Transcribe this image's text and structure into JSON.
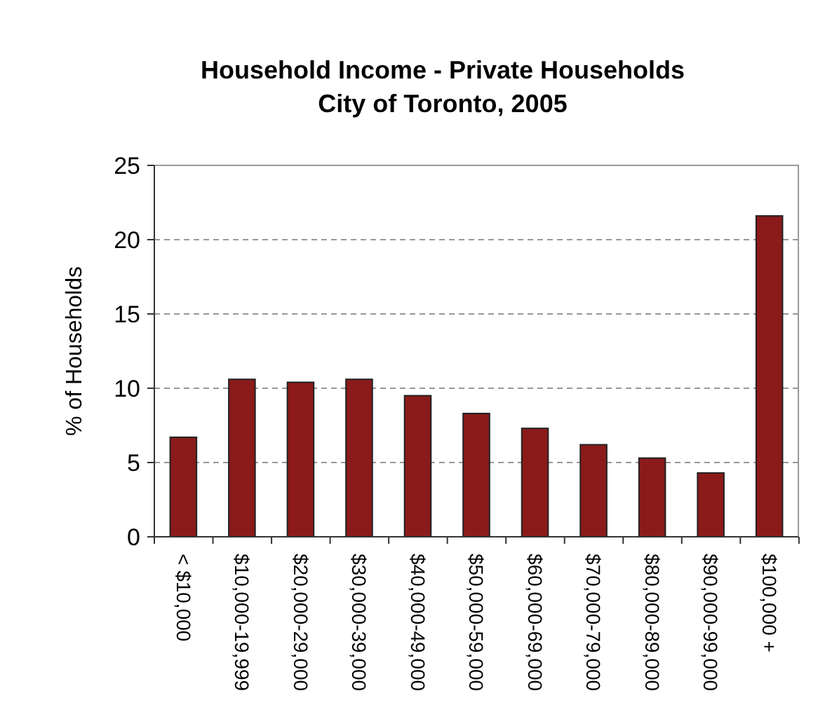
{
  "chart_data": {
    "type": "bar",
    "title": "Household Income - Private Households",
    "subtitle": "City of Toronto, 2005",
    "ylabel": "% of Households",
    "categories": [
      "< $10,000",
      "$10,000-19,999",
      "$20,000-29,000",
      "$30,000-39,000",
      "$40,000-49,000",
      "$50,000-59,000",
      "$60,000-69,000",
      "$70,000-79,000",
      "$80,000-89,000",
      "$90,000-99,000",
      "$100,000 +"
    ],
    "values": [
      6.7,
      10.6,
      10.4,
      10.6,
      9.5,
      8.3,
      7.3,
      6.2,
      5.3,
      4.3,
      21.6
    ],
    "color": "#8b1a1a",
    "ylim": [
      0,
      25
    ],
    "yticks": [
      0,
      5,
      10,
      15,
      20,
      25
    ],
    "grid": "y"
  }
}
